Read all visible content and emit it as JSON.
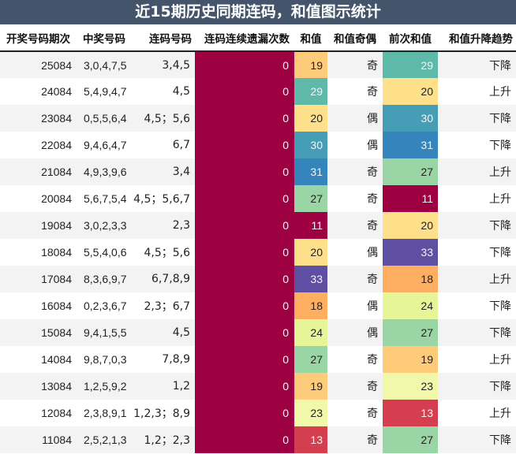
{
  "title": "近15期历史同期连码，和值图示统计",
  "columns": [
    "开奖号码期次",
    "中奖号码",
    "连码号码",
    "连码连续遗漏次数",
    "和值",
    "和值奇偶",
    "前次和值",
    "和值升降趋势"
  ],
  "colors": {
    "title_bg": "#44546a",
    "miss_bg": "#9e0142",
    "11": "#9e0142",
    "13": "#d53e4f",
    "18": "#fdae61",
    "19": "#fecb7b",
    "20": "#fee08b",
    "23": "#f2f8aa",
    "24": "#e6f598",
    "27": "#99d5a5",
    "29": "#5fb9a9",
    "30": "#459eb6",
    "31": "#3584bc",
    "33": "#5e4fa2"
  },
  "rows": [
    {
      "period": "25084",
      "numbers": "3,0,4,7,5",
      "consecutive": "3,4,5",
      "miss": "0",
      "sum": "19",
      "parity": "奇",
      "prev_sum": "29",
      "trend": "下降"
    },
    {
      "period": "24084",
      "numbers": "5,4,9,4,7",
      "consecutive": "4,5",
      "miss": "0",
      "sum": "29",
      "parity": "奇",
      "prev_sum": "20",
      "trend": "上升"
    },
    {
      "period": "23084",
      "numbers": "0,5,5,6,4",
      "consecutive": "4,5；5,6",
      "miss": "0",
      "sum": "20",
      "parity": "偶",
      "prev_sum": "30",
      "trend": "下降"
    },
    {
      "period": "22084",
      "numbers": "9,4,6,4,7",
      "consecutive": "6,7",
      "miss": "0",
      "sum": "30",
      "parity": "偶",
      "prev_sum": "31",
      "trend": "下降"
    },
    {
      "period": "21084",
      "numbers": "4,9,3,9,6",
      "consecutive": "3,4",
      "miss": "0",
      "sum": "31",
      "parity": "奇",
      "prev_sum": "27",
      "trend": "上升"
    },
    {
      "period": "20084",
      "numbers": "5,6,7,5,4",
      "consecutive": "4,5；5,6,7",
      "miss": "0",
      "sum": "27",
      "parity": "奇",
      "prev_sum": "11",
      "trend": "上升"
    },
    {
      "period": "19084",
      "numbers": "3,0,2,3,3",
      "consecutive": "2,3",
      "miss": "0",
      "sum": "11",
      "parity": "奇",
      "prev_sum": "20",
      "trend": "下降"
    },
    {
      "period": "18084",
      "numbers": "5,5,4,0,6",
      "consecutive": "4,5；5,6",
      "miss": "0",
      "sum": "20",
      "parity": "偶",
      "prev_sum": "33",
      "trend": "下降"
    },
    {
      "period": "17084",
      "numbers": "8,3,6,9,7",
      "consecutive": "6,7,8,9",
      "miss": "0",
      "sum": "33",
      "parity": "奇",
      "prev_sum": "18",
      "trend": "上升"
    },
    {
      "period": "16084",
      "numbers": "0,2,3,6,7",
      "consecutive": "2,3；6,7",
      "miss": "0",
      "sum": "18",
      "parity": "偶",
      "prev_sum": "24",
      "trend": "下降"
    },
    {
      "period": "15084",
      "numbers": "9,4,1,5,5",
      "consecutive": "4,5",
      "miss": "0",
      "sum": "24",
      "parity": "偶",
      "prev_sum": "27",
      "trend": "下降"
    },
    {
      "period": "14084",
      "numbers": "9,8,7,0,3",
      "consecutive": "7,8,9",
      "miss": "0",
      "sum": "27",
      "parity": "奇",
      "prev_sum": "19",
      "trend": "上升"
    },
    {
      "period": "13084",
      "numbers": "1,2,5,9,2",
      "consecutive": "1,2",
      "miss": "0",
      "sum": "19",
      "parity": "奇",
      "prev_sum": "23",
      "trend": "下降"
    },
    {
      "period": "12084",
      "numbers": "2,3,8,9,1",
      "consecutive": "1,2,3；8,9",
      "miss": "0",
      "sum": "23",
      "parity": "奇",
      "prev_sum": "13",
      "trend": "上升"
    },
    {
      "period": "11084",
      "numbers": "2,5,2,1,3",
      "consecutive": "1,2；2,3",
      "miss": "0",
      "sum": "13",
      "parity": "奇",
      "prev_sum": "27",
      "trend": "下降"
    }
  ],
  "chart_data": {
    "type": "table",
    "title": "近15期历史同期连码，和值图示统计",
    "columns": [
      "开奖号码期次",
      "中奖号码",
      "连码号码",
      "连码连续遗漏次数",
      "和值",
      "和值奇偶",
      "前次和值",
      "和值升降趋势"
    ],
    "categories": [
      "25084",
      "24084",
      "23084",
      "22084",
      "21084",
      "20084",
      "19084",
      "18084",
      "17084",
      "16084",
      "15084",
      "14084",
      "13084",
      "12084",
      "11084"
    ],
    "series": [
      {
        "name": "连码连续遗漏次数",
        "values": [
          0,
          0,
          0,
          0,
          0,
          0,
          0,
          0,
          0,
          0,
          0,
          0,
          0,
          0,
          0
        ]
      },
      {
        "name": "和值",
        "values": [
          19,
          29,
          20,
          30,
          31,
          27,
          11,
          20,
          33,
          18,
          24,
          27,
          19,
          23,
          13
        ]
      },
      {
        "name": "前次和值",
        "values": [
          29,
          20,
          30,
          31,
          27,
          11,
          20,
          33,
          18,
          24,
          27,
          19,
          23,
          13,
          27
        ]
      }
    ],
    "heatmap_scale": "Spectral (low=red, high=purple)"
  }
}
